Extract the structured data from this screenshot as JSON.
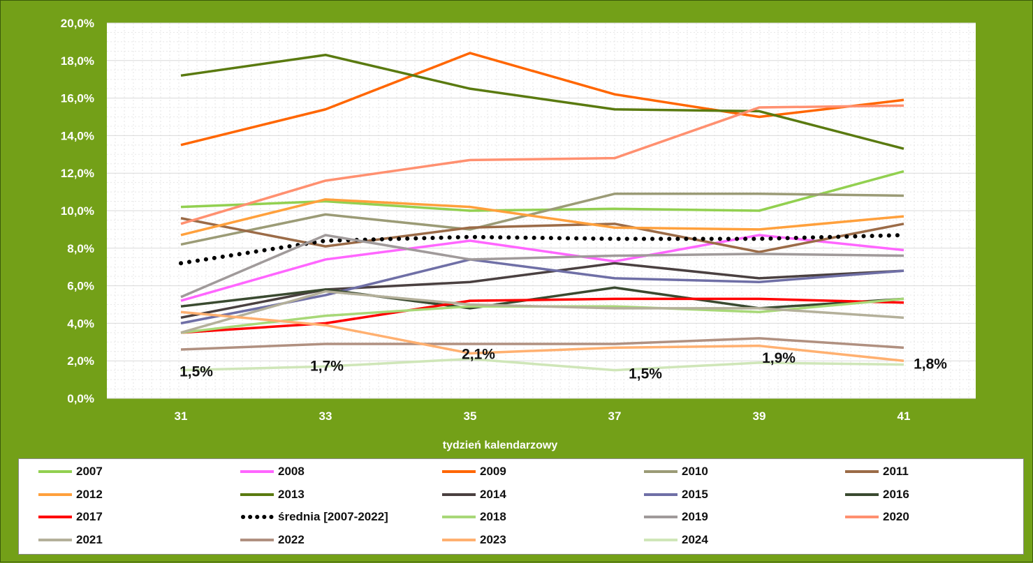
{
  "chart_data": {
    "type": "line",
    "xlabel": "tydzień kalendarzowy",
    "ylabel": "",
    "x": [
      31,
      33,
      35,
      37,
      39,
      41
    ],
    "ylim": [
      0,
      20
    ],
    "yticks": [
      "0,0%",
      "2,0%",
      "4,0%",
      "6,0%",
      "8,0%",
      "10,0%",
      "12,0%",
      "14,0%",
      "16,0%",
      "18,0%",
      "20,0%"
    ],
    "grid": "on (dashed)",
    "legend_position": "bottom",
    "series": [
      {
        "name": "2007",
        "color": "#92d050",
        "values": [
          10.2,
          10.5,
          10.0,
          10.1,
          10.0,
          12.1
        ]
      },
      {
        "name": "2008",
        "color": "#ff66ff",
        "values": [
          5.2,
          7.4,
          8.4,
          7.3,
          8.7,
          7.9
        ]
      },
      {
        "name": "2009",
        "color": "#ff6600",
        "values": [
          13.5,
          15.4,
          18.4,
          16.2,
          15.0,
          15.9
        ]
      },
      {
        "name": "2010",
        "color": "#9b9b76",
        "values": [
          8.2,
          9.8,
          9.0,
          10.9,
          10.9,
          10.8
        ]
      },
      {
        "name": "2011",
        "color": "#9b6b47",
        "values": [
          9.6,
          8.1,
          9.1,
          9.3,
          7.8,
          9.3
        ]
      },
      {
        "name": "2012",
        "color": "#ffa03c",
        "values": [
          8.7,
          10.6,
          10.2,
          9.1,
          9.0,
          9.7
        ]
      },
      {
        "name": "2013",
        "color": "#5a7a10",
        "values": [
          17.2,
          18.3,
          16.5,
          15.4,
          15.3,
          13.3
        ]
      },
      {
        "name": "2014",
        "color": "#4a4040",
        "values": [
          4.3,
          5.8,
          6.2,
          7.2,
          6.4,
          6.8
        ]
      },
      {
        "name": "2015",
        "color": "#6f6fa6",
        "values": [
          4.0,
          5.5,
          7.4,
          6.4,
          6.2,
          6.8
        ]
      },
      {
        "name": "2016",
        "color": "#3a4a30",
        "values": [
          4.9,
          5.8,
          4.8,
          5.9,
          4.8,
          5.3
        ]
      },
      {
        "name": "2017",
        "color": "#ff0000",
        "values": [
          3.5,
          4.0,
          5.2,
          5.3,
          5.3,
          5.1
        ]
      },
      {
        "name": "średnia [2007-2022]",
        "color": "#000000",
        "dotted": true,
        "values": [
          7.2,
          8.4,
          8.6,
          8.5,
          8.5,
          8.7
        ]
      },
      {
        "name": "2018",
        "color": "#a8d878",
        "values": [
          3.5,
          4.4,
          4.9,
          4.9,
          4.6,
          5.3
        ]
      },
      {
        "name": "2019",
        "color": "#a09a9a",
        "values": [
          5.4,
          8.7,
          7.4,
          7.6,
          7.7,
          7.6
        ]
      },
      {
        "name": "2020",
        "color": "#ff9070",
        "values": [
          9.3,
          11.6,
          12.7,
          12.8,
          15.5,
          15.6
        ]
      },
      {
        "name": "2021",
        "color": "#b4b09a",
        "values": [
          3.5,
          5.7,
          5.0,
          4.8,
          4.8,
          4.3
        ]
      },
      {
        "name": "2022",
        "color": "#b09080",
        "values": [
          2.6,
          2.9,
          2.9,
          2.9,
          3.2,
          2.7
        ]
      },
      {
        "name": "2023",
        "color": "#ffb070",
        "values": [
          4.6,
          3.9,
          2.4,
          2.7,
          2.8,
          2.0
        ]
      },
      {
        "name": "2024",
        "color": "#cfe6b8",
        "values": [
          1.5,
          1.7,
          2.1,
          1.5,
          1.9,
          1.8
        ]
      }
    ],
    "data_labels": [
      "1,5%",
      "1,7%",
      "2,1%",
      "1,5%",
      "1,9%",
      "1,8%"
    ]
  }
}
